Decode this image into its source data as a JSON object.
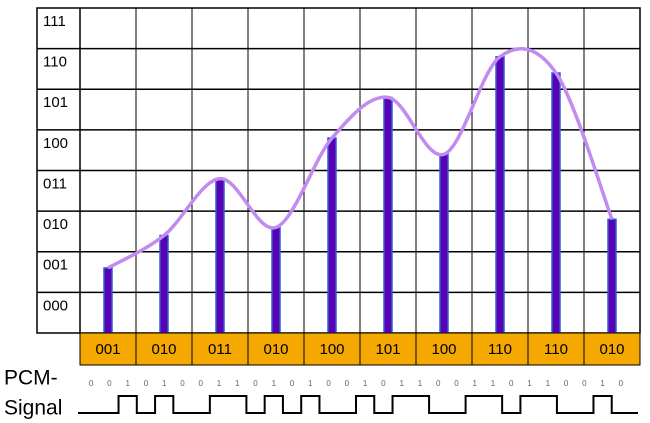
{
  "level_labels": [
    "111",
    "110",
    "101",
    "100",
    "011",
    "010",
    "001",
    "000"
  ],
  "samples": [
    1.6,
    2.4,
    3.8,
    2.6,
    4.8,
    5.8,
    4.4,
    6.8,
    6.4,
    2.8
  ],
  "codes": [
    "001",
    "010",
    "011",
    "010",
    "100",
    "101",
    "100",
    "110",
    "110",
    "010"
  ],
  "signal_label_line1": "PCM-",
  "signal_label_line2": "Signal",
  "pcm_bits": [
    "0",
    "0",
    "1",
    "0",
    "1",
    "0",
    "0",
    "1",
    "1",
    "0",
    "1",
    "0",
    "1",
    "0",
    "0",
    "1",
    "0",
    "1",
    "1",
    "0",
    "0",
    "1",
    "1",
    "0",
    "1",
    "1",
    "0",
    "0",
    "1",
    "0"
  ]
}
